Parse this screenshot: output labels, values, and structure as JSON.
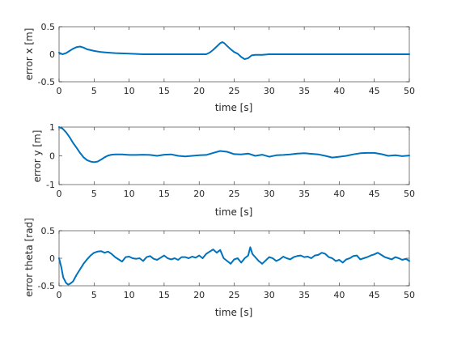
{
  "chart_data": [
    {
      "type": "line",
      "xlabel": "time [s]",
      "ylabel": "error x [m]",
      "xlim": [
        0,
        50
      ],
      "ylim": [
        -0.5,
        0.5
      ],
      "xticks": [
        "0",
        "5",
        "10",
        "15",
        "20",
        "25",
        "30",
        "35",
        "40",
        "45",
        "50"
      ],
      "yticks": [
        "0.5",
        "0",
        "-0.5"
      ],
      "grid": false,
      "color": "#0072BD",
      "x": [
        0,
        0.5,
        1,
        1.5,
        2,
        2.5,
        3,
        3.5,
        4,
        5,
        6,
        7,
        8,
        10,
        12,
        15,
        18,
        20,
        21,
        21.5,
        22,
        22.5,
        23,
        23.3,
        23.6,
        24,
        24.5,
        25,
        25.5,
        26,
        26.5,
        27,
        27.5,
        28,
        29,
        30,
        35,
        40,
        45,
        50
      ],
      "y": [
        0.03,
        0.0,
        0.02,
        0.06,
        0.1,
        0.13,
        0.14,
        0.12,
        0.09,
        0.06,
        0.04,
        0.03,
        0.02,
        0.01,
        0.0,
        0.0,
        0.0,
        0.0,
        0.0,
        0.03,
        0.08,
        0.14,
        0.2,
        0.22,
        0.2,
        0.15,
        0.09,
        0.04,
        0.01,
        -0.05,
        -0.09,
        -0.07,
        -0.02,
        -0.01,
        -0.01,
        0.0,
        0.0,
        0.0,
        0.0,
        0.0
      ]
    },
    {
      "type": "line",
      "xlabel": "time [s]",
      "ylabel": "error y [m]",
      "xlim": [
        0,
        50
      ],
      "ylim": [
        -1,
        1
      ],
      "xticks": [
        "0",
        "5",
        "10",
        "15",
        "20",
        "25",
        "30",
        "35",
        "40",
        "45",
        "50"
      ],
      "yticks": [
        "1",
        "0",
        "-1"
      ],
      "grid": false,
      "color": "#0072BD",
      "x": [
        0,
        0.5,
        1,
        1.5,
        2,
        2.5,
        3,
        3.5,
        4,
        4.5,
        5,
        5.5,
        6,
        6.5,
        7,
        7.5,
        8,
        9,
        10,
        11,
        12,
        13,
        14,
        15,
        16,
        17,
        18,
        19,
        20,
        21,
        22,
        23,
        24,
        25,
        26,
        27,
        28,
        29,
        30,
        31,
        32,
        33,
        34,
        35,
        36,
        37,
        38,
        39,
        40,
        41,
        42,
        43,
        44,
        45,
        46,
        47,
        48,
        49,
        50
      ],
      "y": [
        1.0,
        0.95,
        0.82,
        0.65,
        0.45,
        0.28,
        0.1,
        -0.05,
        -0.15,
        -0.2,
        -0.22,
        -0.2,
        -0.13,
        -0.05,
        0.01,
        0.04,
        0.05,
        0.05,
        0.03,
        0.03,
        0.04,
        0.03,
        0.0,
        0.04,
        0.05,
        0.0,
        -0.02,
        0.0,
        0.02,
        0.03,
        0.1,
        0.17,
        0.14,
        0.06,
        0.05,
        0.08,
        0.0,
        0.04,
        -0.03,
        0.02,
        0.03,
        0.05,
        0.08,
        0.09,
        0.07,
        0.05,
        0.0,
        -0.06,
        -0.03,
        0.0,
        0.05,
        0.09,
        0.1,
        0.1,
        0.06,
        0.0,
        0.02,
        -0.01,
        0.01
      ]
    },
    {
      "type": "line",
      "xlabel": "time [s]",
      "ylabel": "error theta [rad]",
      "xlim": [
        0,
        50
      ],
      "ylim": [
        -0.5,
        0.5
      ],
      "xticks": [
        "0",
        "5",
        "10",
        "15",
        "20",
        "25",
        "30",
        "35",
        "40",
        "45",
        "50"
      ],
      "yticks": [
        "0.5",
        "0",
        "-0.5"
      ],
      "grid": false,
      "color": "#0072BD",
      "x": [
        0,
        0.3,
        0.6,
        1,
        1.3,
        1.6,
        2,
        2.5,
        3,
        3.5,
        4,
        4.5,
        5,
        5.5,
        6,
        6.5,
        7,
        7.5,
        8,
        8.5,
        9,
        9.5,
        10,
        10.5,
        11,
        11.5,
        12,
        12.5,
        13,
        13.5,
        14,
        14.5,
        15,
        15.5,
        16,
        16.5,
        17,
        17.5,
        18,
        18.5,
        19,
        19.5,
        20,
        20.5,
        21,
        21.5,
        22,
        22.5,
        23,
        23.5,
        24,
        24.5,
        25,
        25.5,
        26,
        26.5,
        27,
        27.3,
        27.6,
        28,
        28.5,
        29,
        29.5,
        30,
        30.5,
        31,
        31.5,
        32,
        32.5,
        33,
        33.5,
        34,
        34.5,
        35,
        35.5,
        36,
        36.5,
        37,
        37.5,
        38,
        38.5,
        39,
        39.5,
        40,
        40.5,
        41,
        41.5,
        42,
        42.5,
        43,
        43.5,
        44,
        44.5,
        45,
        45.5,
        46,
        46.5,
        47,
        47.5,
        48,
        48.5,
        49,
        49.5,
        50
      ],
      "y": [
        0.0,
        -0.15,
        -0.35,
        -0.45,
        -0.48,
        -0.46,
        -0.42,
        -0.3,
        -0.2,
        -0.1,
        -0.02,
        0.05,
        0.1,
        0.12,
        0.13,
        0.1,
        0.12,
        0.08,
        0.02,
        -0.02,
        -0.06,
        0.02,
        0.03,
        0.0,
        -0.01,
        0.0,
        -0.05,
        0.02,
        0.04,
        -0.01,
        -0.03,
        0.01,
        0.05,
        0.0,
        -0.02,
        0.0,
        -0.03,
        0.02,
        0.02,
        0.0,
        0.03,
        0.01,
        0.05,
        0.0,
        0.08,
        0.12,
        0.16,
        0.1,
        0.15,
        0.0,
        -0.05,
        -0.1,
        -0.02,
        0.0,
        -0.08,
        0.0,
        0.05,
        0.2,
        0.08,
        0.02,
        -0.05,
        -0.1,
        -0.04,
        0.02,
        0.0,
        -0.05,
        -0.02,
        0.03,
        0.0,
        -0.02,
        0.02,
        0.04,
        0.05,
        0.02,
        0.03,
        0.0,
        0.05,
        0.06,
        0.1,
        0.08,
        0.02,
        0.0,
        -0.05,
        -0.03,
        -0.08,
        -0.02,
        0.0,
        0.04,
        0.05,
        -0.02,
        0.0,
        0.02,
        0.05,
        0.07,
        0.1,
        0.06,
        0.02,
        0.0,
        -0.02,
        0.02,
        0.0,
        -0.03,
        -0.01,
        -0.05
      ]
    }
  ]
}
